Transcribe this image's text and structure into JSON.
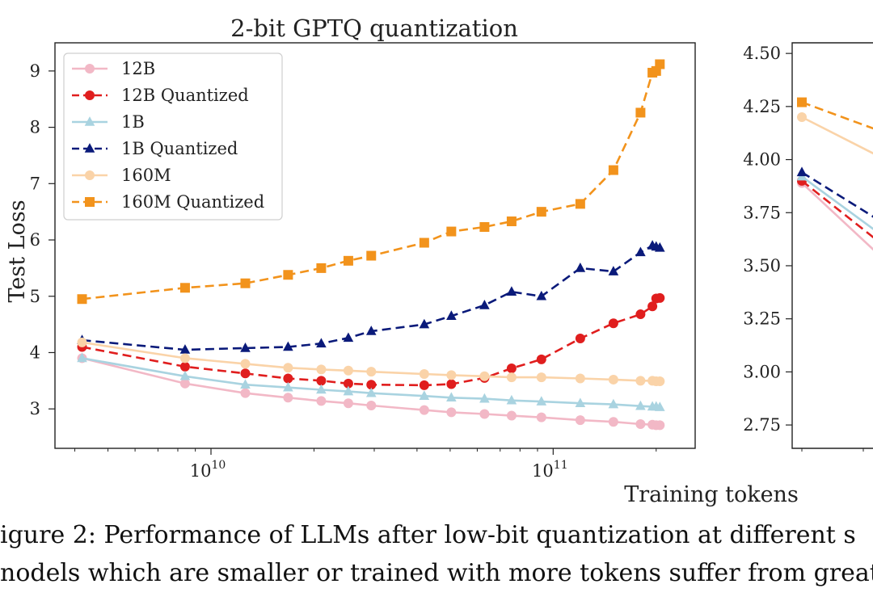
{
  "caption": {
    "line1": "igure 2: Performance of LLMs after low-bit quantization at different s",
    "line2": "nodels which are smaller or trained with more tokens suffer from greate"
  },
  "shared_xlabel": "Training tokens",
  "chart_data": [
    {
      "type": "line",
      "title": "2-bit GPTQ quantization",
      "xlabel": "",
      "ylabel": "Test Loss",
      "xscale": "log",
      "xlim": [
        3500000000.0,
        260000000000.0
      ],
      "ylim": [
        2.3,
        9.5
      ],
      "xticks": [
        {
          "value": 10000000000.0,
          "base": "10",
          "exp": "10"
        },
        {
          "value": 100000000000.0,
          "base": "10",
          "exp": "11"
        }
      ],
      "yticks": [
        3,
        4,
        5,
        6,
        7,
        8,
        9
      ],
      "legend_position": "upper-left",
      "x": [
        4200000000.0,
        8400000000.0,
        12600000000.0,
        16800000000.0,
        21000000000.0,
        25200000000.0,
        29400000000.0,
        42000000000.0,
        50400000000.0,
        63000000000.0,
        75600000000.0,
        92400000000.0,
        120000000000.0,
        150000000000.0,
        180000000000.0,
        195000000000.0,
        200000000000.0,
        205000000000.0
      ],
      "series": [
        {
          "name": "12B",
          "color": "#f2b8c6",
          "marker": "circle",
          "dashed": false,
          "values": [
            3.9,
            3.45,
            3.28,
            3.2,
            3.14,
            3.1,
            3.06,
            2.98,
            2.94,
            2.91,
            2.88,
            2.85,
            2.8,
            2.77,
            2.73,
            2.72,
            2.71,
            2.71
          ]
        },
        {
          "name": "12B Quantized",
          "color": "#e01e1e",
          "marker": "circle",
          "dashed": true,
          "values": [
            4.1,
            3.75,
            3.63,
            3.54,
            3.5,
            3.45,
            3.43,
            3.42,
            3.44,
            3.55,
            3.72,
            3.88,
            4.25,
            4.52,
            4.68,
            4.82,
            4.96,
            4.97
          ]
        },
        {
          "name": "1B",
          "color": "#a9d3e0",
          "marker": "triangle",
          "dashed": false,
          "values": [
            3.9,
            3.58,
            3.43,
            3.38,
            3.34,
            3.31,
            3.28,
            3.23,
            3.2,
            3.18,
            3.15,
            3.13,
            3.1,
            3.08,
            3.05,
            3.04,
            3.04,
            3.03
          ]
        },
        {
          "name": "1B Quantized",
          "color": "#0a1a7a",
          "marker": "triangle",
          "dashed": true,
          "values": [
            4.22,
            4.05,
            4.08,
            4.1,
            4.16,
            4.26,
            4.38,
            4.5,
            4.65,
            4.84,
            5.08,
            5.0,
            5.5,
            5.44,
            5.78,
            5.9,
            5.88,
            5.86
          ]
        },
        {
          "name": "160M",
          "color": "#fad3a8",
          "marker": "circle",
          "dashed": false,
          "values": [
            4.18,
            3.9,
            3.8,
            3.73,
            3.7,
            3.68,
            3.66,
            3.62,
            3.6,
            3.58,
            3.56,
            3.56,
            3.54,
            3.52,
            3.5,
            3.5,
            3.49,
            3.49
          ]
        },
        {
          "name": "160M Quantized",
          "color": "#f2931c",
          "marker": "square",
          "dashed": true,
          "values": [
            4.95,
            5.15,
            5.23,
            5.38,
            5.5,
            5.63,
            5.72,
            5.95,
            6.15,
            6.23,
            6.33,
            6.5,
            6.64,
            7.24,
            8.26,
            8.97,
            9.0,
            9.12
          ]
        }
      ]
    },
    {
      "type": "line",
      "title": "",
      "ylabel": "",
      "ylim": [
        2.64,
        4.55
      ],
      "yticks": [
        "2.75",
        "3.00",
        "3.25",
        "3.50",
        "3.75",
        "4.00",
        "4.25",
        "4.50"
      ],
      "partial": true,
      "series": [
        {
          "name": "12B",
          "color": "#f2b8c6",
          "marker": "circle",
          "dashed": false,
          "values": [
            3.89,
            3.56
          ]
        },
        {
          "name": "12B Quantized",
          "color": "#e01e1e",
          "marker": "circle",
          "dashed": true,
          "values": [
            3.9,
            3.62
          ]
        },
        {
          "name": "1B",
          "color": "#a9d3e0",
          "marker": "triangle",
          "dashed": false,
          "values": [
            3.92,
            3.66
          ]
        },
        {
          "name": "1B Quantized",
          "color": "#0a1a7a",
          "marker": "triangle",
          "dashed": true,
          "values": [
            3.94,
            3.72
          ]
        },
        {
          "name": "160M",
          "color": "#fad3a8",
          "marker": "circle",
          "dashed": false,
          "values": [
            4.2,
            4.02
          ]
        },
        {
          "name": "160M Quantized",
          "color": "#f2931c",
          "marker": "square",
          "dashed": true,
          "values": [
            4.27,
            4.14
          ]
        }
      ]
    }
  ]
}
